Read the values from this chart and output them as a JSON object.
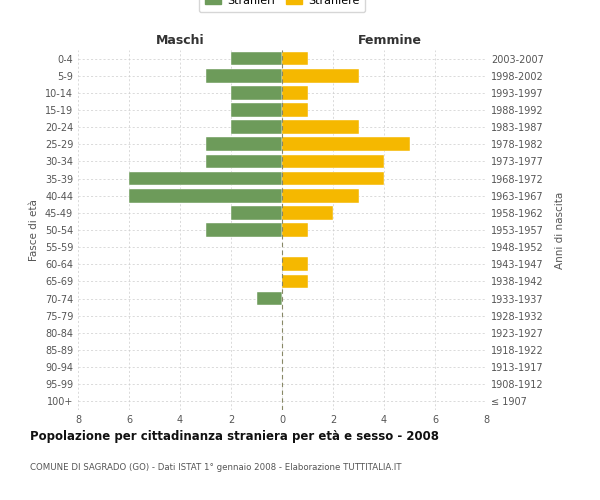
{
  "age_groups": [
    "100+",
    "95-99",
    "90-94",
    "85-89",
    "80-84",
    "75-79",
    "70-74",
    "65-69",
    "60-64",
    "55-59",
    "50-54",
    "45-49",
    "40-44",
    "35-39",
    "30-34",
    "25-29",
    "20-24",
    "15-19",
    "10-14",
    "5-9",
    "0-4"
  ],
  "birth_years": [
    "≤ 1907",
    "1908-1912",
    "1913-1917",
    "1918-1922",
    "1923-1927",
    "1928-1932",
    "1933-1937",
    "1938-1942",
    "1943-1947",
    "1948-1952",
    "1953-1957",
    "1958-1962",
    "1963-1967",
    "1968-1972",
    "1973-1977",
    "1978-1982",
    "1983-1987",
    "1988-1992",
    "1993-1997",
    "1998-2002",
    "2003-2007"
  ],
  "maschi": [
    0,
    0,
    0,
    0,
    0,
    0,
    1,
    0,
    0,
    0,
    3,
    2,
    6,
    6,
    3,
    3,
    2,
    2,
    2,
    3,
    2
  ],
  "femmine": [
    0,
    0,
    0,
    0,
    0,
    0,
    0,
    1,
    1,
    0,
    1,
    2,
    3,
    4,
    4,
    5,
    3,
    1,
    1,
    3,
    1
  ],
  "maschi_color": "#6d9b5a",
  "femmine_color": "#f5b800",
  "title": "Popolazione per cittadinanza straniera per età e sesso - 2008",
  "subtitle": "COMUNE DI SAGRADO (GO) - Dati ISTAT 1° gennaio 2008 - Elaborazione TUTTITALIA.IT",
  "ylabel_left": "Fasce di età",
  "ylabel_right": "Anni di nascita",
  "xlabel_left": "Maschi",
  "xlabel_top_right": "Femmine",
  "legend_stranieri": "Stranieri",
  "legend_straniere": "Straniere",
  "xlim": 8,
  "background_color": "#ffffff",
  "grid_color": "#cccccc",
  "bar_height": 0.8
}
